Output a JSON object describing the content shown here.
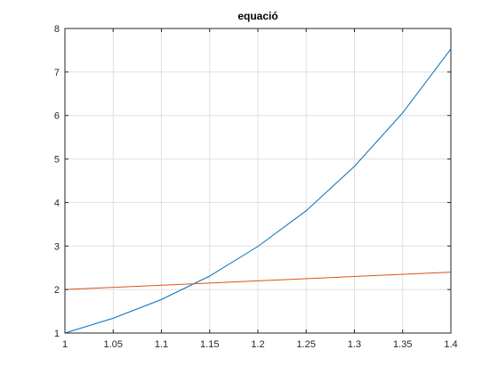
{
  "chart_data": {
    "type": "line",
    "title": "equació",
    "xlabel": "",
    "ylabel": "",
    "xlim": [
      1,
      1.4
    ],
    "ylim": [
      1,
      8
    ],
    "x_ticks": [
      1,
      1.05,
      1.1,
      1.15,
      1.2,
      1.25,
      1.3,
      1.35,
      1.4
    ],
    "x_tick_labels": [
      "1",
      "1.05",
      "1.1",
      "1.15",
      "1.2",
      "1.25",
      "1.3",
      "1.35",
      "1.4"
    ],
    "y_ticks": [
      1,
      2,
      3,
      4,
      5,
      6,
      7,
      8
    ],
    "y_tick_labels": [
      "1",
      "2",
      "3",
      "4",
      "5",
      "6",
      "7",
      "8"
    ],
    "grid": true,
    "series": [
      {
        "color": "#0072bd",
        "x": [
          1,
          1.05,
          1.1,
          1.15,
          1.2,
          1.25,
          1.3,
          1.35,
          1.4
        ],
        "y": [
          1,
          1.34,
          1.77,
          2.31,
          2.99,
          3.81,
          4.83,
          6.06,
          7.53
        ]
      },
      {
        "color": "#d95319",
        "x": [
          1,
          1.4
        ],
        "y": [
          2,
          2.4
        ]
      }
    ]
  }
}
